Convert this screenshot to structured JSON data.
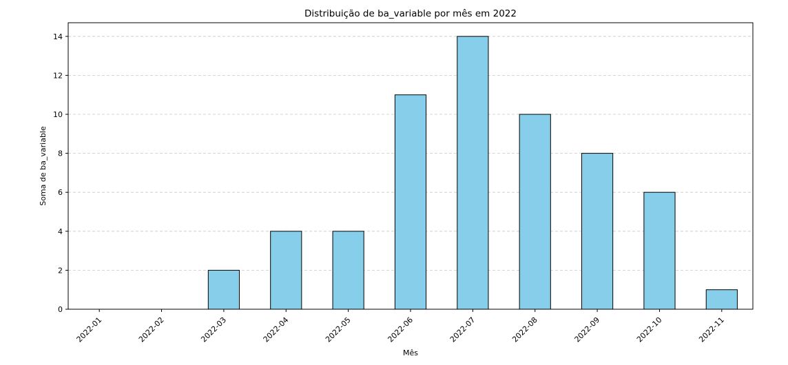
{
  "chart_data": {
    "type": "bar",
    "title": "Distribuição de ba_variable por mês em 2022",
    "xlabel": "Mês",
    "ylabel": "Soma de ba_variable",
    "categories": [
      "2022-01",
      "2022-02",
      "2022-03",
      "2022-04",
      "2022-05",
      "2022-06",
      "2022-07",
      "2022-08",
      "2022-09",
      "2022-10",
      "2022-11"
    ],
    "values": [
      0,
      0,
      2,
      4,
      4,
      11,
      14,
      10,
      8,
      6,
      1
    ],
    "ylim": [
      0,
      14.7
    ],
    "yticks": [
      0,
      2,
      4,
      6,
      8,
      10,
      12,
      14
    ],
    "grid": "horizontal dashed",
    "colors": {
      "bar_fill": "#87ceeb",
      "bar_edge": "#000000",
      "grid": "#c8c8c8"
    }
  }
}
